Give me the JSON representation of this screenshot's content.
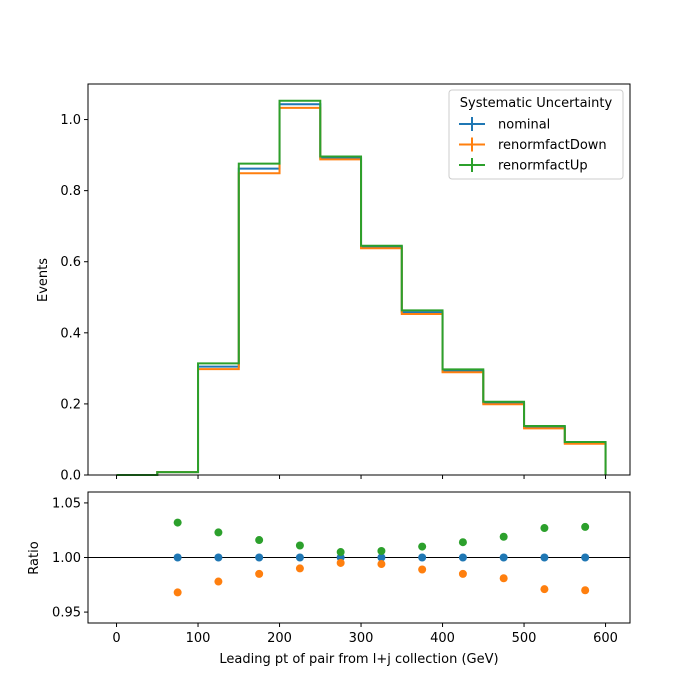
{
  "chart_data": [
    {
      "type": "line",
      "drawstyle": "step",
      "ylabel": "Events",
      "ylim": [
        0,
        1.1
      ],
      "yticks": [
        "0.0",
        "0.2",
        "0.4",
        "0.6",
        "0.8",
        "1.0"
      ],
      "xlim": [
        -35,
        630
      ],
      "bin_edges": [
        0,
        50,
        100,
        150,
        200,
        250,
        300,
        350,
        400,
        450,
        500,
        550,
        600
      ],
      "legend": {
        "title": "Systematic Uncertainty",
        "placement": "top-right"
      },
      "series": [
        {
          "name": "nominal",
          "color": "#1f77b4",
          "values": [
            0.0,
            0.008,
            0.305,
            0.862,
            1.043,
            0.892,
            0.642,
            0.458,
            0.293,
            0.203,
            0.135,
            0.091
          ]
        },
        {
          "name": "renormfactDown",
          "color": "#ff7f0e",
          "values": [
            0.0,
            0.008,
            0.298,
            0.849,
            1.033,
            0.888,
            0.638,
            0.453,
            0.289,
            0.199,
            0.131,
            0.088
          ]
        },
        {
          "name": "renormfactUp",
          "color": "#2ca02c",
          "values": [
            0.0,
            0.008,
            0.314,
            0.876,
            1.053,
            0.896,
            0.645,
            0.463,
            0.297,
            0.206,
            0.138,
            0.093
          ]
        }
      ]
    },
    {
      "type": "scatter",
      "xlabel": "Leading pt of pair from l+j collection (GeV)",
      "ylabel": "Ratio",
      "ylim": [
        0.94,
        1.06
      ],
      "yticks": [
        "0.95",
        "1.00",
        "1.05"
      ],
      "xlim": [
        -35,
        630
      ],
      "xticks": [
        "0",
        "100",
        "200",
        "300",
        "400",
        "500",
        "600"
      ],
      "reference_line": 1.0,
      "x": [
        75,
        125,
        175,
        225,
        275,
        325,
        375,
        425,
        475,
        525,
        575
      ],
      "series": [
        {
          "name": "nominal",
          "color": "#1f77b4",
          "values": [
            1.0,
            1.0,
            1.0,
            1.0,
            1.0,
            1.0,
            1.0,
            1.0,
            1.0,
            1.0,
            1.0
          ]
        },
        {
          "name": "renormfactDown",
          "color": "#ff7f0e",
          "values": [
            0.968,
            0.978,
            0.985,
            0.99,
            0.995,
            0.994,
            0.989,
            0.985,
            0.981,
            0.971,
            0.97
          ]
        },
        {
          "name": "renormfactUp",
          "color": "#2ca02c",
          "values": [
            1.032,
            1.023,
            1.016,
            1.011,
            1.005,
            1.006,
            1.01,
            1.014,
            1.019,
            1.027,
            1.028
          ]
        }
      ]
    }
  ]
}
